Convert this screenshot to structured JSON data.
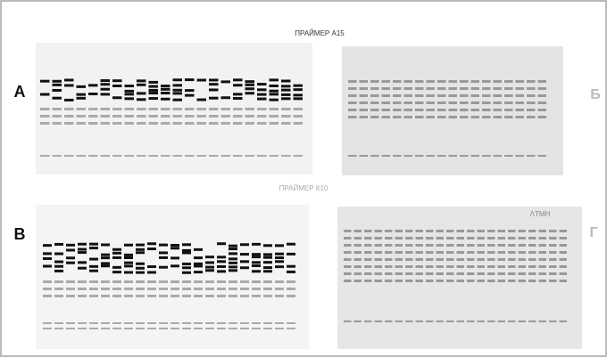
{
  "header": {
    "title_top": "ПРАЙМЕР А15",
    "title_middle": "ПРАЙМЕР К10"
  },
  "panels": [
    {
      "label": "А"
    },
    {
      "label": "Б"
    },
    {
      "label": "В"
    },
    {
      "label": "Г",
      "note": "ΛТМН"
    }
  ]
}
